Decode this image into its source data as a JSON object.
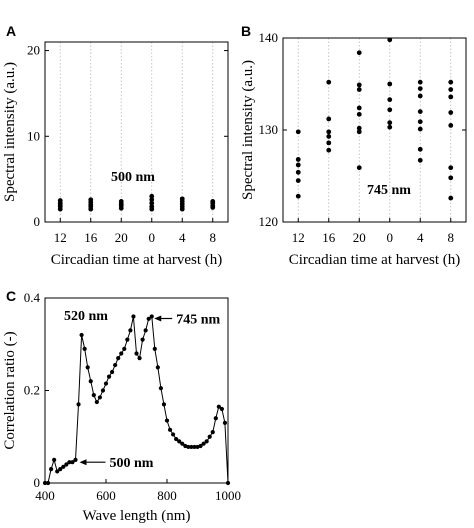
{
  "chart_data": [
    {
      "panel": "A",
      "type": "scatter",
      "annotation": "500 nm",
      "xlabel": "Circadian time at harvest (h)",
      "ylabel": "Spectral intensity (a.u.)",
      "categories": [
        "12",
        "16",
        "20",
        "0",
        "4",
        "8"
      ],
      "yticks": [
        "0",
        "10",
        "20"
      ],
      "ylim": [
        0,
        21
      ],
      "grid": "vertical dotted at each category",
      "points": [
        [
          0,
          1.5
        ],
        [
          0,
          1.8
        ],
        [
          0,
          2.0
        ],
        [
          0,
          2.2
        ],
        [
          0,
          2.5
        ],
        [
          1,
          1.5
        ],
        [
          1,
          1.8
        ],
        [
          1,
          2.0
        ],
        [
          1,
          2.3
        ],
        [
          1,
          2.6
        ],
        [
          2,
          1.6
        ],
        [
          2,
          1.9
        ],
        [
          2,
          2.1
        ],
        [
          2,
          2.4
        ],
        [
          3,
          1.5
        ],
        [
          3,
          1.8
        ],
        [
          3,
          2.2
        ],
        [
          3,
          2.6
        ],
        [
          3,
          3.0
        ],
        [
          4,
          1.5
        ],
        [
          4,
          1.8
        ],
        [
          4,
          2.1
        ],
        [
          4,
          2.4
        ],
        [
          4,
          2.7
        ],
        [
          5,
          1.7
        ],
        [
          5,
          1.9
        ],
        [
          5,
          2.2
        ],
        [
          5,
          2.4
        ]
      ]
    },
    {
      "panel": "B",
      "type": "scatter",
      "annotation": "745 nm",
      "xlabel": "Circadian time at harvest (h)",
      "ylabel": "Spectral intensity (a.u.)",
      "categories": [
        "12",
        "16",
        "20",
        "0",
        "4",
        "8"
      ],
      "yticks": [
        "120",
        "130",
        "140"
      ],
      "ylim": [
        120,
        140
      ],
      "grid": "vertical dotted at each category",
      "points": [
        [
          0,
          122.8
        ],
        [
          0,
          124.5
        ],
        [
          0,
          125.4
        ],
        [
          0,
          126.2
        ],
        [
          0,
          126.8
        ],
        [
          0,
          129.8
        ],
        [
          1,
          127.8
        ],
        [
          1,
          128.6
        ],
        [
          1,
          129.3
        ],
        [
          1,
          129.8
        ],
        [
          1,
          131.2
        ],
        [
          1,
          135.2
        ],
        [
          2,
          125.9
        ],
        [
          2,
          129.8
        ],
        [
          2,
          130.2
        ],
        [
          2,
          131.7
        ],
        [
          2,
          132.4
        ],
        [
          2,
          134.4
        ],
        [
          2,
          134.9
        ],
        [
          2,
          138.4
        ],
        [
          3,
          132.2
        ],
        [
          3,
          130.3
        ],
        [
          3,
          130.8
        ],
        [
          3,
          133.3
        ],
        [
          3,
          135.0
        ],
        [
          3,
          139.8
        ],
        [
          4,
          126.7
        ],
        [
          4,
          127.9
        ],
        [
          4,
          130.1
        ],
        [
          4,
          130.9
        ],
        [
          4,
          132.0
        ],
        [
          4,
          133.7
        ],
        [
          4,
          134.5
        ],
        [
          4,
          135.2
        ],
        [
          5,
          122.6
        ],
        [
          5,
          124.8
        ],
        [
          5,
          125.9
        ],
        [
          5,
          130.5
        ],
        [
          5,
          131.9
        ],
        [
          5,
          133.6
        ],
        [
          5,
          134.4
        ],
        [
          5,
          135.2
        ]
      ]
    },
    {
      "panel": "C",
      "type": "line",
      "xlabel": "Wave length (nm)",
      "ylabel": "Correlation ratio (-)",
      "xlim": [
        400,
        1000
      ],
      "ylim": [
        0,
        0.4
      ],
      "xticks": [
        "400",
        "600",
        "800",
        "1000"
      ],
      "yticks": [
        "0",
        "0.2",
        "0.4"
      ],
      "annotations": [
        {
          "text": "520 nm",
          "x": 520,
          "y": 0.37
        },
        {
          "text": "745 nm",
          "x": 745,
          "y": 0.36
        },
        {
          "text": "500 nm",
          "x": 500,
          "y": 0.045
        }
      ],
      "x": [
        400,
        410,
        420,
        430,
        440,
        450,
        460,
        470,
        480,
        490,
        500,
        510,
        520,
        530,
        540,
        550,
        560,
        570,
        580,
        590,
        600,
        610,
        620,
        630,
        640,
        650,
        660,
        670,
        680,
        690,
        700,
        710,
        720,
        730,
        740,
        750,
        760,
        770,
        780,
        790,
        800,
        810,
        820,
        830,
        840,
        850,
        860,
        870,
        880,
        890,
        900,
        910,
        920,
        930,
        940,
        950,
        960,
        970,
        980,
        990,
        1000
      ],
      "y": [
        0.0,
        0.0,
        0.03,
        0.05,
        0.025,
        0.03,
        0.035,
        0.04,
        0.045,
        0.045,
        0.05,
        0.17,
        0.32,
        0.29,
        0.25,
        0.22,
        0.19,
        0.175,
        0.185,
        0.2,
        0.215,
        0.23,
        0.24,
        0.255,
        0.27,
        0.28,
        0.29,
        0.31,
        0.33,
        0.36,
        0.28,
        0.27,
        0.31,
        0.33,
        0.355,
        0.36,
        0.29,
        0.25,
        0.205,
        0.17,
        0.135,
        0.115,
        0.105,
        0.095,
        0.09,
        0.085,
        0.08,
        0.078,
        0.078,
        0.078,
        0.078,
        0.08,
        0.085,
        0.09,
        0.1,
        0.11,
        0.14,
        0.165,
        0.16,
        0.13,
        0.0
      ]
    }
  ]
}
